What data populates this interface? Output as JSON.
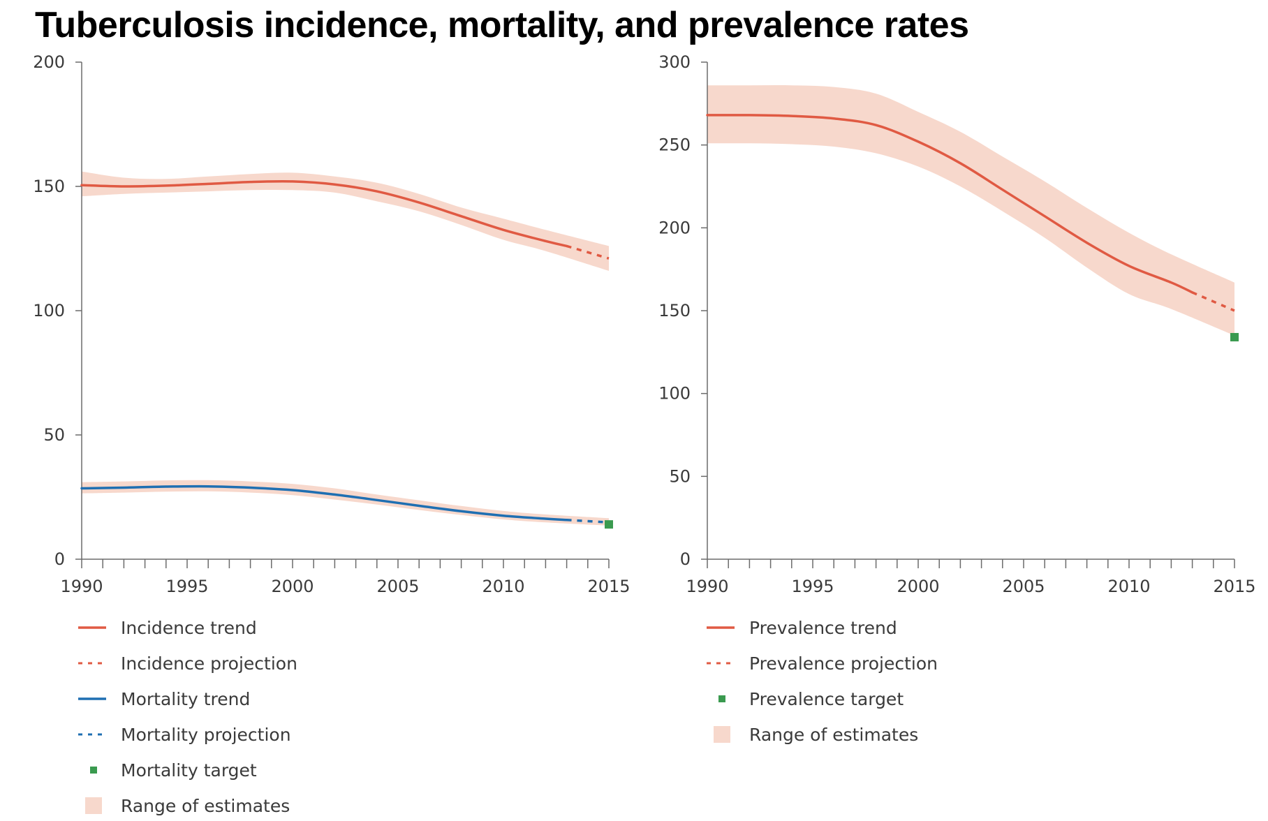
{
  "title": "Tuberculosis incidence, mortality, and prevalence rates",
  "colors": {
    "trend_red": "#e05a43",
    "trend_blue": "#1f6fb2",
    "target_green": "#3a9a4f",
    "range_fill": "#f7d8cc",
    "axis": "#6b6b6b"
  },
  "chart_data": [
    {
      "type": "line",
      "xlim": [
        1990,
        2015
      ],
      "ylim": [
        0,
        200
      ],
      "x_ticks": [
        1990,
        1995,
        2000,
        2005,
        2010,
        2015
      ],
      "y_ticks": [
        0,
        50,
        100,
        150,
        200
      ],
      "grid": false,
      "legend_position": "bottom",
      "series": [
        {
          "name": "Incidence trend",
          "kind": "trend",
          "color": "#e05a43",
          "x": [
            1990,
            1992,
            1994,
            1996,
            1998,
            2000,
            2002,
            2004,
            2006,
            2008,
            2010,
            2012,
            2013
          ],
          "y": [
            150.5,
            150.0,
            150.3,
            151.0,
            151.8,
            152.0,
            150.8,
            148.0,
            143.5,
            138.0,
            132.5,
            128.0,
            126.0
          ]
        },
        {
          "name": "Incidence projection",
          "kind": "projection",
          "color": "#e05a43",
          "x": [
            2013,
            2015
          ],
          "y": [
            126.0,
            121.0
          ]
        },
        {
          "name": "Mortality trend",
          "kind": "trend",
          "color": "#1f6fb2",
          "x": [
            1990,
            1992,
            1994,
            1996,
            1998,
            2000,
            2002,
            2004,
            2006,
            2008,
            2010,
            2012,
            2013
          ],
          "y": [
            28.5,
            28.8,
            29.2,
            29.3,
            28.8,
            27.8,
            26.0,
            23.8,
            21.5,
            19.3,
            17.5,
            16.3,
            15.8
          ]
        },
        {
          "name": "Mortality projection",
          "kind": "projection",
          "color": "#1f6fb2",
          "x": [
            2013,
            2015
          ],
          "y": [
            15.8,
            14.8
          ]
        },
        {
          "name": "Mortality target",
          "kind": "target",
          "color": "#3a9a4f",
          "x": [
            2015
          ],
          "y": [
            14.0
          ]
        }
      ],
      "ranges": [
        {
          "name": "Range of estimates",
          "x": [
            1990,
            1992,
            1994,
            1996,
            1998,
            2000,
            2002,
            2004,
            2006,
            2008,
            2010,
            2012,
            2015
          ],
          "lower": [
            146,
            147,
            147.5,
            148,
            148.5,
            148.5,
            147.5,
            144,
            140,
            134.5,
            128.5,
            124,
            116
          ],
          "upper": [
            156,
            153.5,
            153,
            154,
            155,
            155.5,
            154,
            151.5,
            147,
            141.5,
            137,
            132.5,
            126
          ]
        },
        {
          "name": "Range of estimates",
          "x": [
            1990,
            1992,
            1994,
            1996,
            1998,
            2000,
            2002,
            2004,
            2006,
            2008,
            2010,
            2012,
            2015
          ],
          "lower": [
            26.5,
            26.8,
            27.2,
            27.3,
            26.8,
            25.8,
            24.0,
            22.0,
            19.8,
            17.8,
            16.0,
            14.8,
            13.5
          ],
          "upper": [
            31.0,
            31.3,
            31.7,
            31.8,
            31.3,
            30.3,
            28.5,
            26.0,
            23.7,
            21.4,
            19.4,
            18.0,
            16.5
          ]
        }
      ],
      "legend": [
        {
          "label": "Incidence trend",
          "symbol": "line",
          "color": "#e05a43"
        },
        {
          "label": "Incidence projection",
          "symbol": "dashed",
          "color": "#e05a43"
        },
        {
          "label": "Mortality trend",
          "symbol": "line",
          "color": "#1f6fb2"
        },
        {
          "label": "Mortality projection",
          "symbol": "dashed",
          "color": "#1f6fb2"
        },
        {
          "label": "Mortality target",
          "symbol": "square",
          "color": "#3a9a4f"
        },
        {
          "label": "Range of estimates",
          "symbol": "box",
          "color": "#f7d8cc"
        }
      ]
    },
    {
      "type": "line",
      "xlim": [
        1990,
        2015
      ],
      "ylim": [
        0,
        300
      ],
      "x_ticks": [
        1990,
        1995,
        2000,
        2005,
        2010,
        2015
      ],
      "y_ticks": [
        0,
        50,
        100,
        150,
        200,
        250,
        300
      ],
      "grid": false,
      "legend_position": "bottom",
      "series": [
        {
          "name": "Prevalence trend",
          "kind": "trend",
          "color": "#e05a43",
          "x": [
            1990,
            1992,
            1994,
            1996,
            1998,
            2000,
            2002,
            2004,
            2006,
            2008,
            2010,
            2012,
            2013
          ],
          "y": [
            268,
            268,
            267.5,
            266,
            262,
            252,
            239,
            223,
            207,
            191,
            177,
            167,
            161
          ]
        },
        {
          "name": "Prevalence projection",
          "kind": "projection",
          "color": "#e05a43",
          "x": [
            2013,
            2015
          ],
          "y": [
            161,
            150
          ]
        },
        {
          "name": "Prevalence target",
          "kind": "target",
          "color": "#3a9a4f",
          "x": [
            2015
          ],
          "y": [
            134
          ]
        }
      ],
      "ranges": [
        {
          "name": "Range of estimates",
          "x": [
            1990,
            1992,
            1994,
            1996,
            1998,
            2000,
            2002,
            2004,
            2006,
            2008,
            2010,
            2012,
            2015
          ],
          "lower": [
            251,
            251,
            250.5,
            249,
            245,
            237,
            225,
            210,
            194,
            176,
            160,
            151,
            135
          ],
          "upper": [
            286,
            286,
            286,
            285,
            281,
            270,
            258,
            243,
            228,
            212,
            197,
            184,
            167
          ]
        }
      ],
      "legend": [
        {
          "label": "Prevalence trend",
          "symbol": "line",
          "color": "#e05a43"
        },
        {
          "label": "Prevalence projection",
          "symbol": "dashed",
          "color": "#e05a43"
        },
        {
          "label": "Prevalence target",
          "symbol": "square",
          "color": "#3a9a4f"
        },
        {
          "label": "Range of estimates",
          "symbol": "box",
          "color": "#f7d8cc"
        }
      ]
    }
  ]
}
